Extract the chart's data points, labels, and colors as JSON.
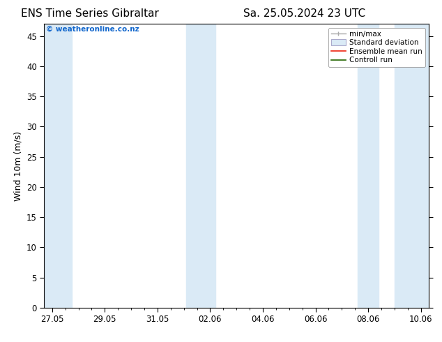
{
  "title_left": "ENS Time Series Gibraltar",
  "title_right": "Sa. 25.05.2024 23 UTC",
  "ylabel": "Wind 10m (m/s)",
  "watermark": "© weatheronline.co.nz",
  "watermark_color": "#1166cc",
  "ylim": [
    0,
    47
  ],
  "yticks": [
    0,
    5,
    10,
    15,
    20,
    25,
    30,
    35,
    40,
    45
  ],
  "background_color": "#ffffff",
  "plot_bg_color": "#ffffff",
  "shade_color": "#daeaf6",
  "shade_regions_days": [
    [
      0.0,
      0.75
    ],
    [
      5.0,
      6.0
    ],
    [
      11.5,
      12.5
    ],
    [
      12.5,
      13.5
    ]
  ],
  "x_tick_labels": [
    "27.05",
    "29.05",
    "31.05",
    "02.06",
    "04.06",
    "06.06",
    "08.06",
    "10.06"
  ],
  "x_tick_offsets": [
    0,
    2,
    4,
    6,
    8,
    10,
    12,
    14
  ],
  "xlim_days": [
    -0.3,
    14.3
  ],
  "legend_entries": [
    "min/max",
    "Standard deviation",
    "Ensemble mean run",
    "Controll run"
  ],
  "title_fontsize": 11,
  "axis_label_fontsize": 9,
  "tick_fontsize": 8.5,
  "legend_fontsize": 7.5
}
